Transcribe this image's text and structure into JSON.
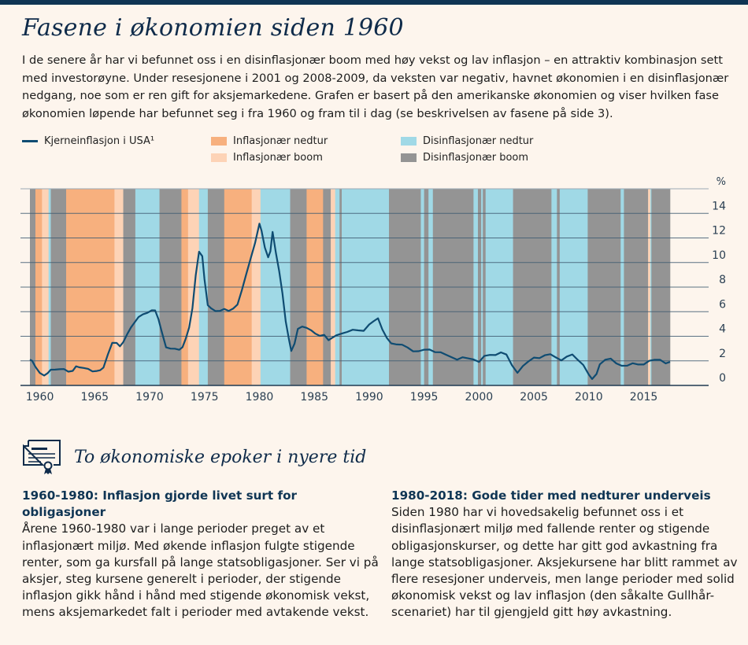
{
  "header": {
    "title": "Fasene i økonomien siden 1960",
    "intro": "I de senere år har vi befunnet oss i en disinflasjonær boom med høy vekst og lav inflasjon – en attraktiv kombinasjon sett med investorøyne. Under resesjonene i 2001 og 2008-2009, da veksten var negativ, havnet økonomien i en disinflasjonær nedgang, noe som er ren gift for aksjemarkedene. Grafen er basert på den amerikanske økonomien og viser hvilken fase økonomien løpende har befunnet seg i fra 1960 og fram til i dag (se beskrivelsen av fasene på side 3)."
  },
  "colors": {
    "line": "#0f4c72",
    "inflasjonaer_nedtur": "#f7b07e",
    "inflasjonaer_boom": "#fdd3b6",
    "disinflasjonaer_nedtur": "#a0d9e6",
    "disinflasjonaer_boom": "#949494",
    "gridline": "#3f5c72",
    "title": "#0f2b4a"
  },
  "chart_data": {
    "type": "line",
    "title": "",
    "xlabel": "",
    "ylabel": "%",
    "xlim": [
      1959.1,
      2017.4
    ],
    "ylim": [
      0,
      16
    ],
    "y_ticks": [
      0,
      2,
      4,
      6,
      8,
      10,
      12,
      14
    ],
    "x_ticks": [
      1960,
      1965,
      1970,
      1975,
      1980,
      1985,
      1990,
      1995,
      2000,
      2005,
      2010,
      2015
    ],
    "grid": true,
    "legend": {
      "placement": "top",
      "entries": [
        {
          "label": "Kjerneinflasjon i USA¹",
          "kind": "line",
          "key": "line"
        },
        {
          "label": "Inflasjonær nedtur",
          "kind": "band",
          "key": "inflasjonaer_nedtur"
        },
        {
          "label": "Inflasjonær boom",
          "kind": "band",
          "key": "inflasjonaer_boom"
        },
        {
          "label": "Disinflasjonær nedtur",
          "kind": "band",
          "key": "disinflasjonaer_nedtur"
        },
        {
          "label": "Disinflasjonær boom",
          "kind": "band",
          "key": "disinflasjonaer_boom"
        }
      ]
    },
    "phases": [
      {
        "start": 1959.1,
        "end": 1959.6,
        "phase": "disinflasjonaer_boom"
      },
      {
        "start": 1959.6,
        "end": 1960.2,
        "phase": "inflasjonaer_nedtur"
      },
      {
        "start": 1960.2,
        "end": 1960.8,
        "phase": "inflasjonaer_boom"
      },
      {
        "start": 1960.8,
        "end": 1961.0,
        "phase": "disinflasjonaer_nedtur"
      },
      {
        "start": 1961.0,
        "end": 1962.4,
        "phase": "disinflasjonaer_boom"
      },
      {
        "start": 1962.4,
        "end": 1966.8,
        "phase": "inflasjonaer_nedtur"
      },
      {
        "start": 1966.8,
        "end": 1967.6,
        "phase": "inflasjonaer_boom"
      },
      {
        "start": 1967.6,
        "end": 1968.7,
        "phase": "disinflasjonaer_boom"
      },
      {
        "start": 1968.7,
        "end": 1970.9,
        "phase": "disinflasjonaer_nedtur"
      },
      {
        "start": 1970.9,
        "end": 1972.9,
        "phase": "disinflasjonaer_boom"
      },
      {
        "start": 1972.9,
        "end": 1973.5,
        "phase": "inflasjonaer_nedtur"
      },
      {
        "start": 1973.5,
        "end": 1974.5,
        "phase": "inflasjonaer_boom"
      },
      {
        "start": 1974.5,
        "end": 1975.3,
        "phase": "disinflasjonaer_nedtur"
      },
      {
        "start": 1975.3,
        "end": 1976.8,
        "phase": "disinflasjonaer_boom"
      },
      {
        "start": 1976.8,
        "end": 1979.3,
        "phase": "inflasjonaer_nedtur"
      },
      {
        "start": 1979.3,
        "end": 1980.1,
        "phase": "inflasjonaer_boom"
      },
      {
        "start": 1980.1,
        "end": 1982.8,
        "phase": "disinflasjonaer_nedtur"
      },
      {
        "start": 1982.8,
        "end": 1984.3,
        "phase": "disinflasjonaer_boom"
      },
      {
        "start": 1984.3,
        "end": 1985.8,
        "phase": "inflasjonaer_nedtur"
      },
      {
        "start": 1985.8,
        "end": 1986.5,
        "phase": "disinflasjonaer_boom"
      },
      {
        "start": 1986.5,
        "end": 1986.9,
        "phase": "inflasjonaer_boom"
      },
      {
        "start": 1986.9,
        "end": 1987.3,
        "phase": "disinflasjonaer_nedtur"
      },
      {
        "start": 1987.3,
        "end": 1987.5,
        "phase": "disinflasjonaer_boom"
      },
      {
        "start": 1987.5,
        "end": 1991.8,
        "phase": "disinflasjonaer_nedtur"
      },
      {
        "start": 1991.8,
        "end": 1994.7,
        "phase": "disinflasjonaer_boom"
      },
      {
        "start": 1994.7,
        "end": 1995.0,
        "phase": "disinflasjonaer_nedtur"
      },
      {
        "start": 1995.0,
        "end": 1995.4,
        "phase": "disinflasjonaer_boom"
      },
      {
        "start": 1995.4,
        "end": 1995.8,
        "phase": "disinflasjonaer_nedtur"
      },
      {
        "start": 1995.8,
        "end": 1999.5,
        "phase": "disinflasjonaer_boom"
      },
      {
        "start": 1999.5,
        "end": 1999.9,
        "phase": "disinflasjonaer_nedtur"
      },
      {
        "start": 1999.9,
        "end": 2000.2,
        "phase": "disinflasjonaer_boom"
      },
      {
        "start": 2000.2,
        "end": 2000.35,
        "phase": "disinflasjonaer_nedtur"
      },
      {
        "start": 2000.35,
        "end": 2000.6,
        "phase": "disinflasjonaer_boom"
      },
      {
        "start": 2000.6,
        "end": 2003.1,
        "phase": "disinflasjonaer_nedtur"
      },
      {
        "start": 2003.1,
        "end": 2006.6,
        "phase": "disinflasjonaer_boom"
      },
      {
        "start": 2006.6,
        "end": 2007.1,
        "phase": "disinflasjonaer_nedtur"
      },
      {
        "start": 2007.1,
        "end": 2007.35,
        "phase": "disinflasjonaer_boom"
      },
      {
        "start": 2007.35,
        "end": 2009.9,
        "phase": "disinflasjonaer_nedtur"
      },
      {
        "start": 2009.9,
        "end": 2012.9,
        "phase": "disinflasjonaer_boom"
      },
      {
        "start": 2012.9,
        "end": 2013.2,
        "phase": "disinflasjonaer_nedtur"
      },
      {
        "start": 2013.2,
        "end": 2015.4,
        "phase": "disinflasjonaer_boom"
      },
      {
        "start": 2015.4,
        "end": 2015.6,
        "phase": "inflasjonaer_boom"
      },
      {
        "start": 2015.6,
        "end": 2015.7,
        "phase": "disinflasjonaer_nedtur"
      },
      {
        "start": 2015.7,
        "end": 2017.4,
        "phase": "disinflasjonaer_boom"
      }
    ],
    "series": [
      {
        "name": "Kjerneinflasjon i USA¹",
        "x": [
          1959.1,
          1959.3,
          1959.6,
          1960.0,
          1960.4,
          1960.7,
          1961.0,
          1961.4,
          1961.8,
          1962.2,
          1962.6,
          1963.0,
          1963.3,
          1963.6,
          1964.0,
          1964.4,
          1964.8,
          1965.2,
          1965.5,
          1965.8,
          1966.2,
          1966.6,
          1967.0,
          1967.3,
          1967.6,
          1968.0,
          1968.3,
          1968.6,
          1969.0,
          1969.4,
          1969.8,
          1970.2,
          1970.5,
          1970.8,
          1971.1,
          1971.5,
          1971.9,
          1972.3,
          1972.7,
          1973.0,
          1973.3,
          1973.6,
          1973.9,
          1974.2,
          1974.5,
          1974.8,
          1975.0,
          1975.3,
          1975.6,
          1976.0,
          1976.4,
          1976.8,
          1977.2,
          1977.6,
          1978.0,
          1978.4,
          1978.8,
          1979.2,
          1979.6,
          1980.0,
          1980.2,
          1980.5,
          1980.8,
          1981.0,
          1981.2,
          1981.5,
          1981.8,
          1982.1,
          1982.4,
          1982.7,
          1982.9,
          1983.2,
          1983.5,
          1983.9,
          1984.3,
          1984.7,
          1985.1,
          1985.5,
          1985.9,
          1986.3,
          1986.6,
          1987.0,
          1987.5,
          1988.0,
          1988.5,
          1989.0,
          1989.5,
          1990.0,
          1990.4,
          1990.8,
          1991.2,
          1991.6,
          1992.0,
          1992.5,
          1993.0,
          1993.5,
          1994.0,
          1994.5,
          1995.0,
          1995.5,
          1996.0,
          1996.5,
          1997.0,
          1997.5,
          1998.0,
          1998.5,
          1999.0,
          1999.5,
          2000.0,
          2000.5,
          2001.0,
          2001.5,
          2002.0,
          2002.5,
          2003.0,
          2003.5,
          2004.0,
          2004.5,
          2005.0,
          2005.5,
          2006.0,
          2006.5,
          2007.0,
          2007.5,
          2008.0,
          2008.5,
          2009.0,
          2009.5,
          2010.0,
          2010.3,
          2010.7,
          2011.0,
          2011.5,
          2012.0,
          2012.5,
          2013.0,
          2013.5,
          2014.0,
          2014.5,
          2015.0,
          2015.5,
          2016.0,
          2016.5,
          2017.0,
          2017.4
        ],
        "values": [
          2.1,
          1.9,
          1.4,
          1.0,
          0.9,
          1.1,
          1.3,
          1.2,
          1.2,
          1.3,
          1.2,
          1.3,
          1.6,
          1.4,
          1.3,
          1.3,
          1.2,
          1.3,
          1.3,
          1.4,
          2.4,
          3.4,
          3.5,
          3.3,
          3.6,
          4.2,
          4.6,
          5.0,
          5.6,
          5.9,
          6.0,
          6.1,
          6.0,
          5.3,
          4.4,
          3.2,
          3.1,
          3.0,
          2.8,
          3.0,
          3.8,
          4.8,
          6.4,
          9.0,
          10.8,
          10.4,
          8.6,
          6.6,
          6.4,
          6.1,
          6.0,
          6.1,
          6.0,
          6.3,
          6.7,
          7.8,
          9.0,
          10.2,
          11.5,
          13.2,
          12.7,
          11.3,
          10.4,
          10.8,
          12.4,
          10.8,
          9.4,
          7.6,
          5.2,
          3.6,
          2.7,
          3.4,
          4.7,
          4.9,
          4.7,
          4.4,
          4.1,
          4.0,
          4.2,
          3.8,
          3.9,
          4.0,
          4.1,
          4.3,
          4.6,
          4.6,
          4.5,
          4.9,
          5.1,
          5.4,
          4.6,
          4.0,
          3.5,
          3.3,
          3.2,
          3.0,
          2.8,
          2.9,
          3.0,
          2.9,
          2.6,
          2.6,
          2.5,
          2.4,
          2.2,
          2.3,
          2.1,
          2.0,
          1.9,
          2.5,
          2.6,
          2.5,
          2.6,
          2.4,
          1.6,
          1.1,
          1.7,
          2.0,
          2.2,
          2.1,
          2.4,
          2.6,
          2.4,
          2.1,
          2.3,
          2.4,
          2.0,
          1.7,
          1.0,
          0.6,
          0.9,
          1.6,
          2.0,
          2.2,
          1.9,
          1.7,
          1.6,
          1.7,
          1.6,
          1.7,
          2.1,
          2.2,
          2.1,
          1.7,
          1.8
        ]
      }
    ]
  },
  "section": {
    "icon": "certificate-icon",
    "title": "To økonomiske epoker i nyere tid"
  },
  "columns": [
    {
      "heading": "1960-1980: Inflasjon gjorde livet surt for obligasjoner",
      "body": "Årene 1960-1980 var i lange perioder preget av et inflasjonært miljø. Med økende inflasjon fulgte stigende renter, som ga kursfall på lange statsobligasjoner. Ser vi på aksjer, steg kursene generelt i perioder, der stigende inflasjon gikk hånd i hånd med stigende økonomisk vekst, mens aksjemarkedet falt i perioder med avtakende vekst."
    },
    {
      "heading": "1980-2018: Gode tider med nedturer underveis",
      "body": "Siden 1980 har vi hovedsakelig befunnet oss i et disinflasjonært miljø med fallende renter og stigende obligasjonskurser, og dette har gitt god avkastning fra lange statsobligasjoner. Aksjekursene har blitt rammet av flere resesjoner underveis, men lange perioder med solid økonomisk vekst og lav inflasjon (den såkalte Gullhår-scenariet) har til gjengjeld gitt høy avkastning."
    }
  ]
}
